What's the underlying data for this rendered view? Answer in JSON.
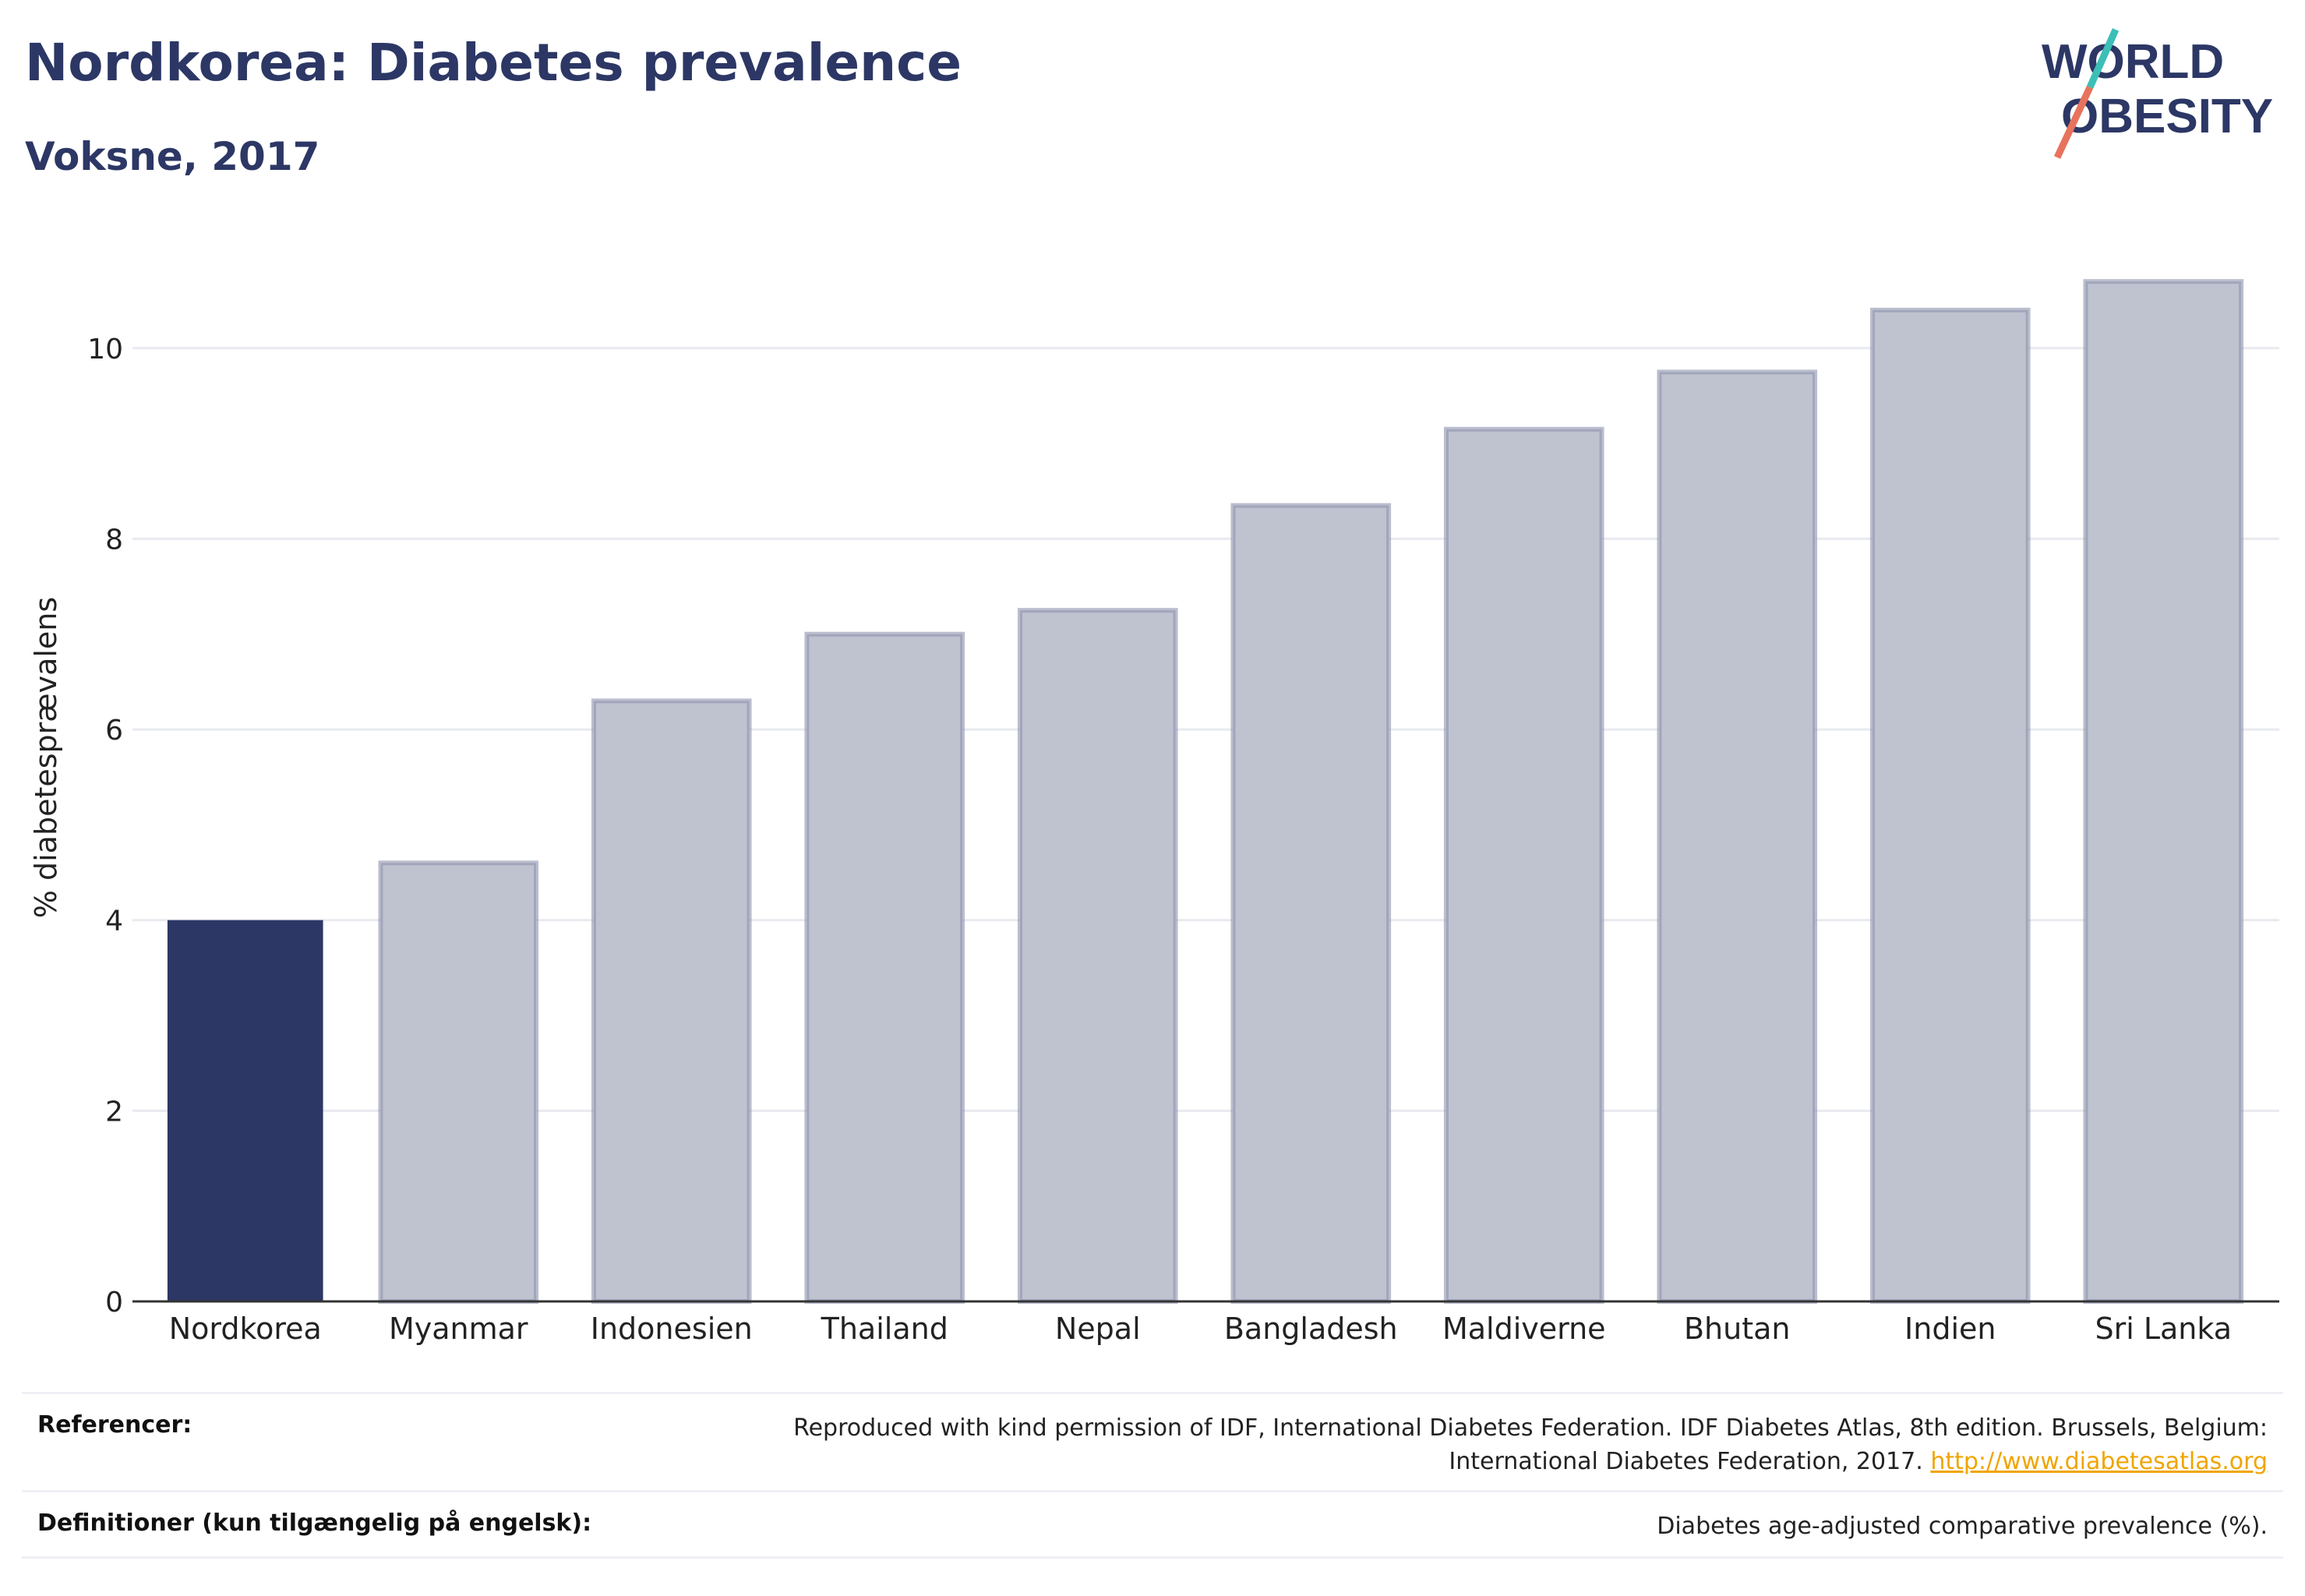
{
  "header": {
    "title": "Nordkorea: Diabetes prevalence",
    "subtitle": "Voksne, 2017"
  },
  "logo": {
    "line1": "WORLD",
    "line2": "OBESITY",
    "colors": {
      "text": "#2c3765",
      "slash_top": "#3bbfb6",
      "slash_bottom": "#e8735c"
    }
  },
  "chart_data": {
    "type": "bar",
    "categories": [
      "Nordkorea",
      "Myanmar",
      "Indonesien",
      "Thailand",
      "Nepal",
      "Bangladesh",
      "Maldiverne",
      "Bhutan",
      "Indien",
      "Sri Lanka"
    ],
    "values": [
      4.0,
      4.6,
      6.3,
      7.0,
      7.25,
      8.35,
      9.15,
      9.75,
      10.4,
      10.7
    ],
    "highlight": "Nordkorea",
    "ylabel": "% diabetesprævalens",
    "xlabel": "",
    "ylim": [
      0,
      11.2
    ],
    "yticks": [
      0,
      2,
      4,
      6,
      8,
      10
    ],
    "grid": true,
    "colors": {
      "highlight": "#2c3765",
      "other_fill": "#bfc2cf",
      "other_stroke": "#8d92ad",
      "grid": "#e8eaf0",
      "axis": "#333333"
    }
  },
  "references": {
    "ref_label": "Referencer:",
    "ref_line1": "Reproduced with kind permission of IDF, International Diabetes Federation. IDF Diabetes Atlas, 8th edition. Brussels, Belgium:",
    "ref_line2": "International Diabetes Federation, 2017.",
    "ref_link": "http://www.diabetesatlas.org",
    "def_label": "Definitioner (kun tilgængelig på engelsk):",
    "def_text": "Diabetes age-adjusted comparative prevalence (%)."
  }
}
